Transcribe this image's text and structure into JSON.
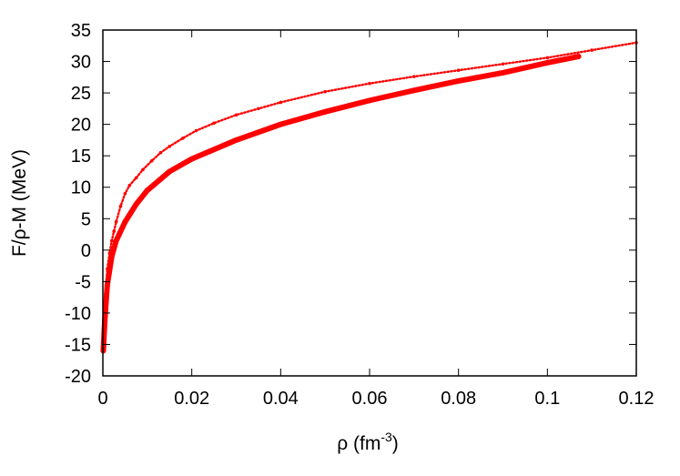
{
  "chart_data": {
    "type": "scatter",
    "title": "",
    "xlabel_main": "ρ (fm",
    "xlabel_sup": "-3",
    "xlabel_tail": ")",
    "ylabel": "F/ρ-M (MeV)",
    "xlim": [
      0,
      0.12
    ],
    "ylim": [
      -20,
      35
    ],
    "xticks": [
      "0",
      "0.02",
      "0.04",
      "0.06",
      "0.08",
      "0.1",
      "0.12"
    ],
    "yticks": [
      "-20",
      "-15",
      "-10",
      "-5",
      "0",
      "5",
      "10",
      "15",
      "20",
      "25",
      "30",
      "35"
    ],
    "grid": false,
    "legend": "none",
    "color": "#ff0000",
    "series": [
      {
        "style": "dense-curve",
        "x": [
          0.0001,
          0.0003,
          0.0005,
          0.001,
          0.002,
          0.003,
          0.005,
          0.0075,
          0.01,
          0.015,
          0.02,
          0.03,
          0.04,
          0.05,
          0.06,
          0.07,
          0.08,
          0.09,
          0.1,
          0.107
        ],
        "y": [
          -16.0,
          -13.0,
          -10.5,
          -5.5,
          -1.0,
          1.5,
          4.5,
          7.3,
          9.5,
          12.5,
          14.5,
          17.5,
          20.0,
          22.0,
          23.8,
          25.4,
          26.9,
          28.2,
          29.8,
          30.8
        ]
      },
      {
        "style": "sparse-points",
        "x": [
          0.0001,
          0.0003,
          0.0006,
          0.001,
          0.0015,
          0.002,
          0.0025,
          0.003,
          0.004,
          0.005,
          0.006,
          0.0075,
          0.009,
          0.011,
          0.013,
          0.015,
          0.018,
          0.021,
          0.025,
          0.03,
          0.035,
          0.04,
          0.05,
          0.06,
          0.07,
          0.08,
          0.09,
          0.1,
          0.11,
          0.12
        ],
        "y": [
          -15.0,
          -11.0,
          -7.0,
          -3.0,
          -0.5,
          1.5,
          3.0,
          4.5,
          7.0,
          9.0,
          10.3,
          11.5,
          12.8,
          14.2,
          15.5,
          16.5,
          17.8,
          19.0,
          20.2,
          21.5,
          22.5,
          23.5,
          25.2,
          26.5,
          27.6,
          28.6,
          29.6,
          30.6,
          31.8,
          33.0
        ]
      }
    ]
  }
}
